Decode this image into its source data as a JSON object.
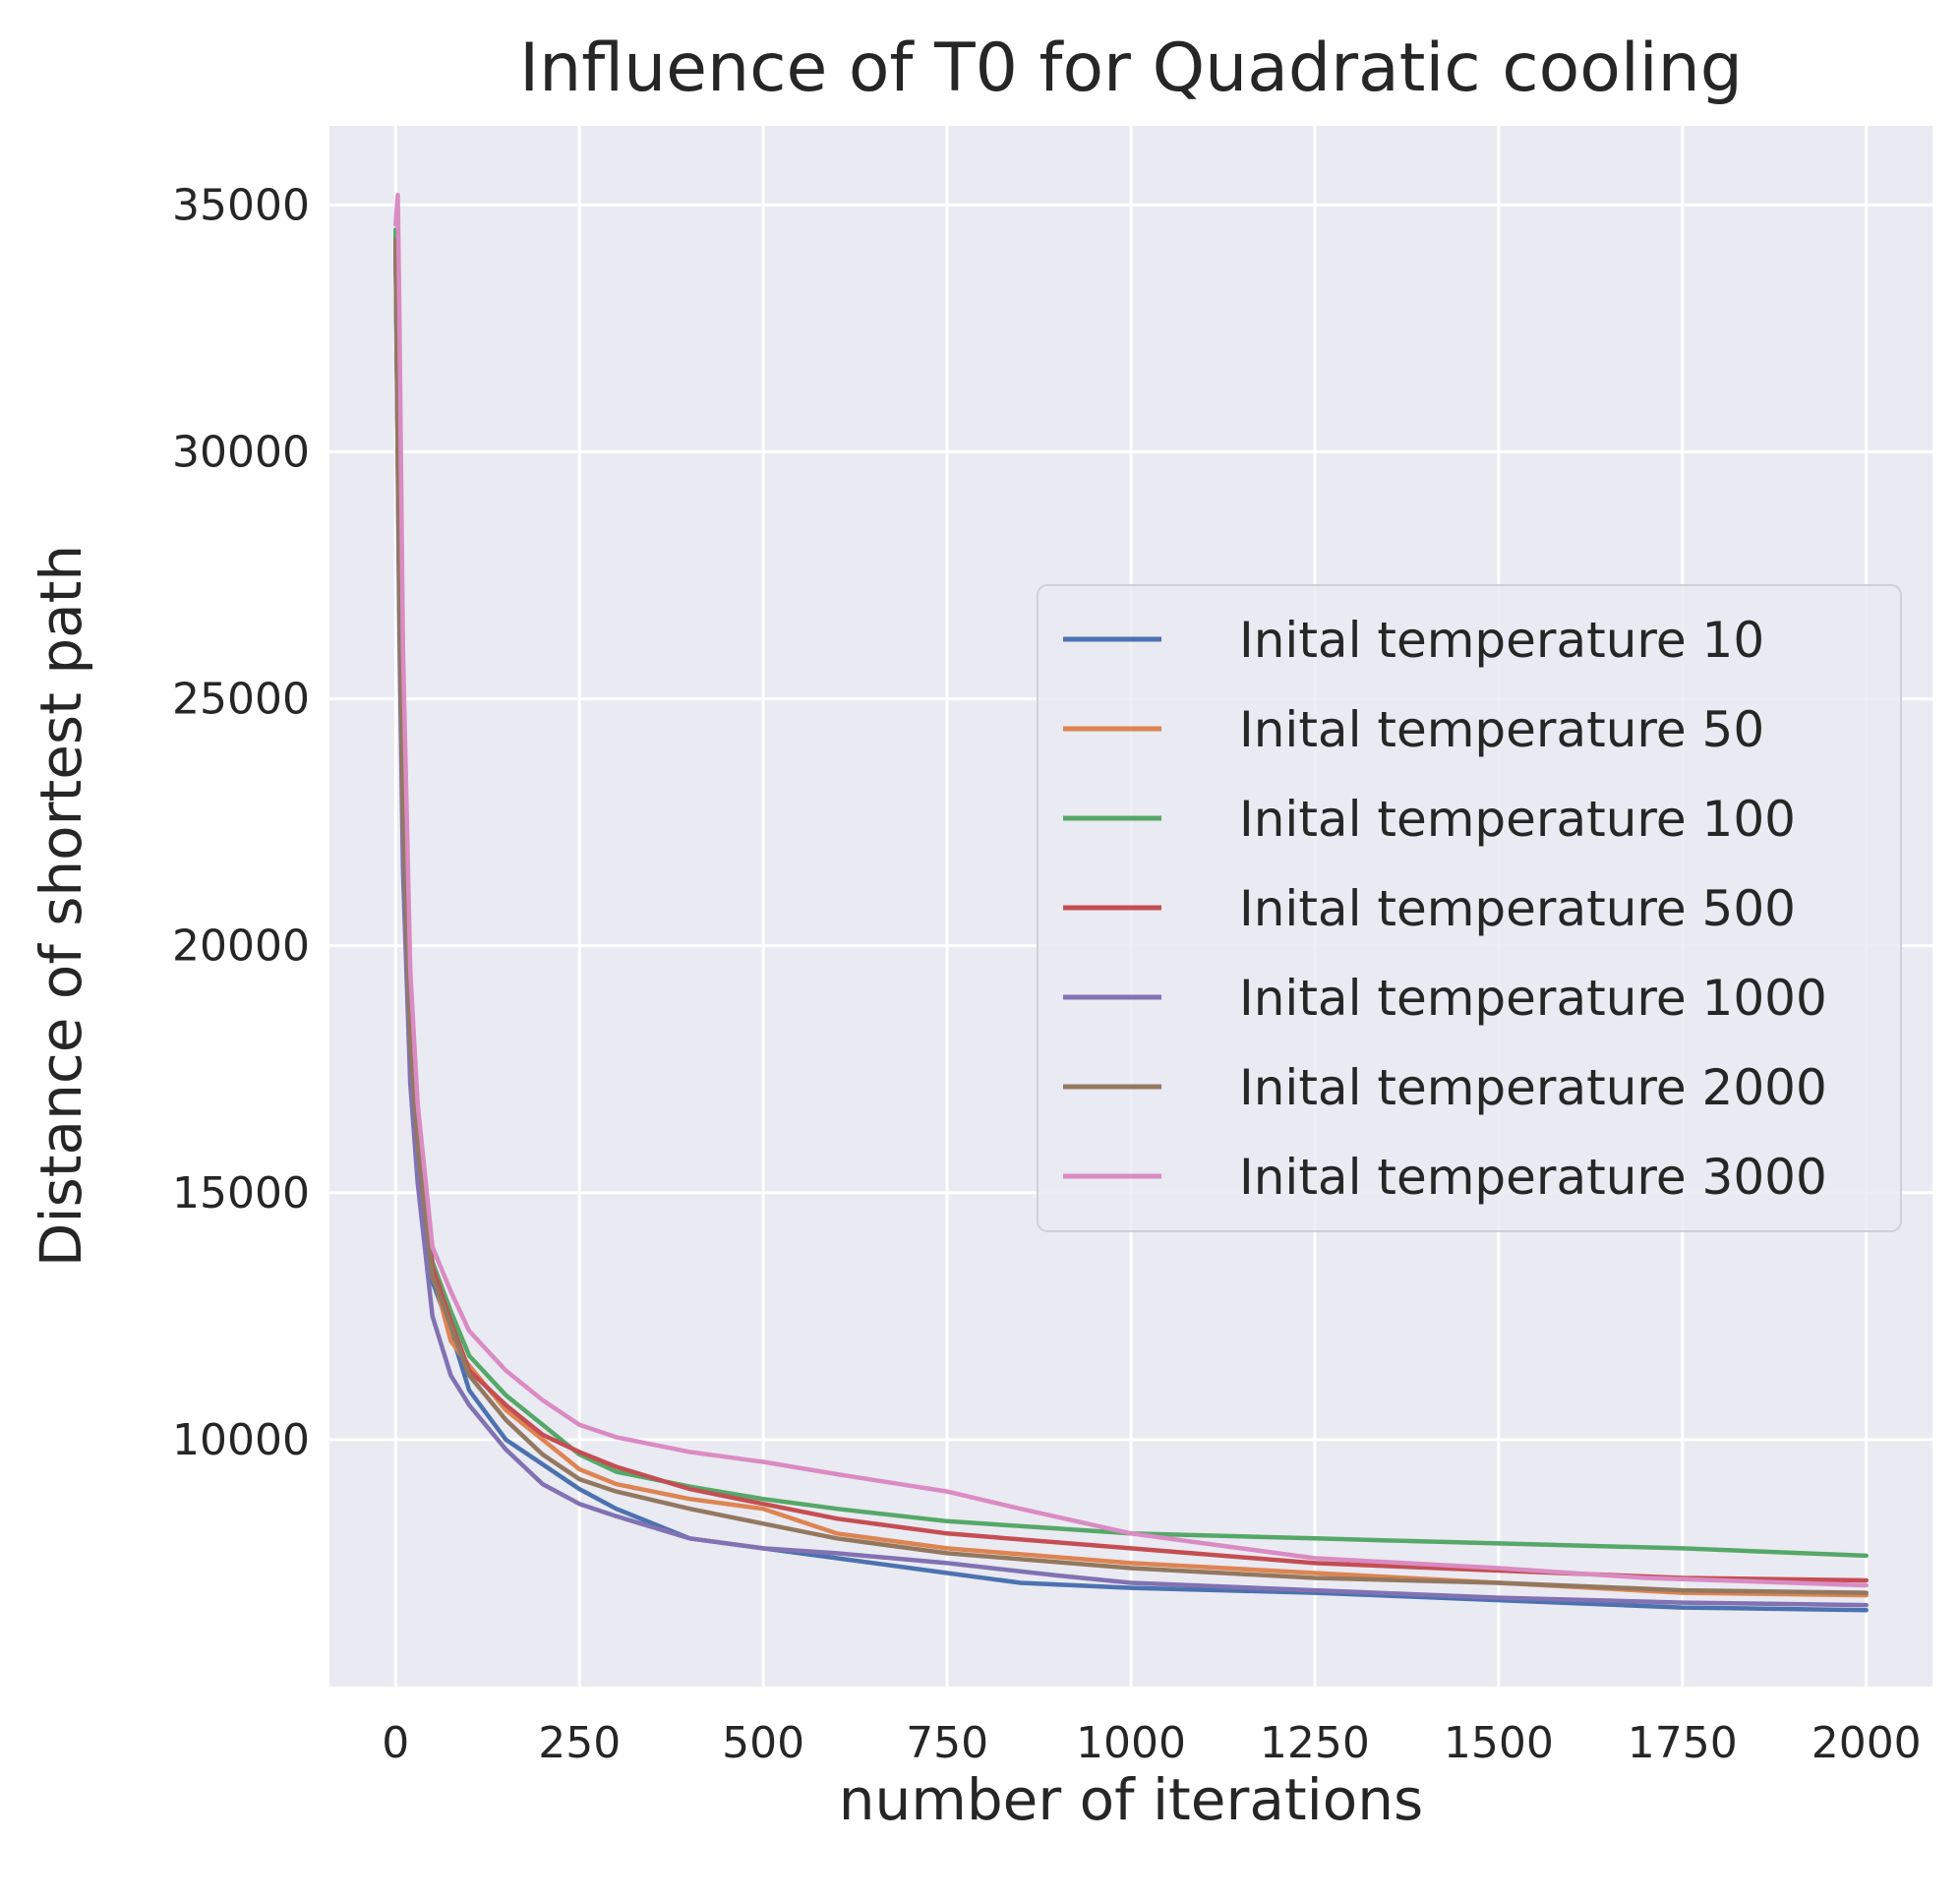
{
  "chart_data": {
    "type": "line",
    "title": "Influence of T0 for Quadratic cooling",
    "xlabel": "number of iterations",
    "ylabel": "Distance of shortest path",
    "xlim": [
      -90,
      2090
    ],
    "ylim": [
      5000,
      36600
    ],
    "xticks": [
      0,
      250,
      500,
      750,
      1000,
      1250,
      1500,
      1750,
      2000
    ],
    "yticks": [
      10000,
      15000,
      20000,
      25000,
      30000,
      35000
    ],
    "grid": true,
    "legend": "center-right",
    "series": [
      {
        "name": "Inital temperature 10",
        "color": "#4c72b0",
        "points": [
          [
            0,
            34400
          ],
          [
            5,
            27000
          ],
          [
            10,
            22000
          ],
          [
            20,
            17500
          ],
          [
            30,
            15500
          ],
          [
            50,
            13200
          ],
          [
            75,
            12200
          ],
          [
            100,
            11000
          ],
          [
            150,
            10000
          ],
          [
            200,
            9500
          ],
          [
            250,
            9000
          ],
          [
            300,
            8600
          ],
          [
            400,
            8000
          ],
          [
            500,
            7800
          ],
          [
            600,
            7600
          ],
          [
            750,
            7300
          ],
          [
            850,
            7100
          ],
          [
            1000,
            7000
          ],
          [
            1250,
            6900
          ],
          [
            1500,
            6750
          ],
          [
            1750,
            6600
          ],
          [
            2000,
            6550
          ]
        ]
      },
      {
        "name": "Inital temperature 50",
        "color": "#dd8452",
        "points": [
          [
            0,
            34300
          ],
          [
            5,
            27000
          ],
          [
            10,
            22500
          ],
          [
            20,
            18000
          ],
          [
            30,
            16000
          ],
          [
            50,
            13400
          ],
          [
            75,
            12000
          ],
          [
            100,
            11500
          ],
          [
            150,
            10600
          ],
          [
            200,
            10000
          ],
          [
            250,
            9400
          ],
          [
            300,
            9100
          ],
          [
            400,
            8800
          ],
          [
            500,
            8600
          ],
          [
            600,
            8100
          ],
          [
            750,
            7800
          ],
          [
            1000,
            7500
          ],
          [
            1250,
            7300
          ],
          [
            1500,
            7100
          ],
          [
            1750,
            6900
          ],
          [
            2000,
            6850
          ]
        ]
      },
      {
        "name": "Inital temperature 100",
        "color": "#55a868",
        "points": [
          [
            0,
            34500
          ],
          [
            5,
            27500
          ],
          [
            10,
            23000
          ],
          [
            20,
            18500
          ],
          [
            30,
            16500
          ],
          [
            50,
            13600
          ],
          [
            75,
            12600
          ],
          [
            100,
            11700
          ],
          [
            150,
            10900
          ],
          [
            200,
            10300
          ],
          [
            250,
            9700
          ],
          [
            300,
            9350
          ],
          [
            400,
            9050
          ],
          [
            500,
            8800
          ],
          [
            600,
            8600
          ],
          [
            750,
            8350
          ],
          [
            900,
            8200
          ],
          [
            1000,
            8100
          ],
          [
            1250,
            8000
          ],
          [
            1500,
            7900
          ],
          [
            1750,
            7800
          ],
          [
            2000,
            7650
          ]
        ]
      },
      {
        "name": "Inital temperature 500",
        "color": "#c44e52",
        "points": [
          [
            0,
            34200
          ],
          [
            5,
            27200
          ],
          [
            10,
            22800
          ],
          [
            20,
            18300
          ],
          [
            30,
            16200
          ],
          [
            50,
            13500
          ],
          [
            75,
            12400
          ],
          [
            100,
            11400
          ],
          [
            150,
            10700
          ],
          [
            200,
            10100
          ],
          [
            250,
            9750
          ],
          [
            300,
            9450
          ],
          [
            400,
            9000
          ],
          [
            500,
            8700
          ],
          [
            600,
            8400
          ],
          [
            750,
            8100
          ],
          [
            1000,
            7800
          ],
          [
            1250,
            7500
          ],
          [
            1500,
            7350
          ],
          [
            1750,
            7200
          ],
          [
            2000,
            7150
          ]
        ]
      },
      {
        "name": "Inital temperature 1000",
        "color": "#8172b3",
        "points": [
          [
            0,
            34100
          ],
          [
            5,
            26500
          ],
          [
            10,
            21500
          ],
          [
            20,
            17200
          ],
          [
            30,
            15200
          ],
          [
            50,
            12500
          ],
          [
            75,
            11300
          ],
          [
            100,
            10700
          ],
          [
            150,
            9800
          ],
          [
            200,
            9100
          ],
          [
            250,
            8700
          ],
          [
            300,
            8450
          ],
          [
            400,
            8000
          ],
          [
            500,
            7800
          ],
          [
            600,
            7700
          ],
          [
            750,
            7500
          ],
          [
            900,
            7250
          ],
          [
            1000,
            7100
          ],
          [
            1250,
            6950
          ],
          [
            1500,
            6800
          ],
          [
            1750,
            6700
          ],
          [
            2000,
            6650
          ]
        ]
      },
      {
        "name": "Inital temperature 2000",
        "color": "#937860",
        "points": [
          [
            0,
            34300
          ],
          [
            5,
            27300
          ],
          [
            10,
            22700
          ],
          [
            20,
            18100
          ],
          [
            30,
            16000
          ],
          [
            50,
            13300
          ],
          [
            75,
            12300
          ],
          [
            100,
            11300
          ],
          [
            150,
            10400
          ],
          [
            200,
            9700
          ],
          [
            250,
            9200
          ],
          [
            300,
            8950
          ],
          [
            400,
            8600
          ],
          [
            500,
            8300
          ],
          [
            600,
            8000
          ],
          [
            750,
            7700
          ],
          [
            1000,
            7400
          ],
          [
            1250,
            7200
          ],
          [
            1500,
            7100
          ],
          [
            1750,
            6950
          ],
          [
            2000,
            6900
          ]
        ]
      },
      {
        "name": "Inital temperature 3000",
        "color": "#da8bc3",
        "points": [
          [
            0,
            34600
          ],
          [
            3,
            35200
          ],
          [
            5,
            33000
          ],
          [
            10,
            26000
          ],
          [
            20,
            19500
          ],
          [
            30,
            16800
          ],
          [
            50,
            13900
          ],
          [
            75,
            13000
          ],
          [
            100,
            12200
          ],
          [
            150,
            11400
          ],
          [
            200,
            10800
          ],
          [
            250,
            10300
          ],
          [
            300,
            10050
          ],
          [
            400,
            9750
          ],
          [
            500,
            9550
          ],
          [
            600,
            9300
          ],
          [
            750,
            8950
          ],
          [
            850,
            8600
          ],
          [
            1000,
            8100
          ],
          [
            1100,
            7900
          ],
          [
            1250,
            7600
          ],
          [
            1500,
            7400
          ],
          [
            1700,
            7200
          ],
          [
            2000,
            7050
          ]
        ]
      }
    ]
  }
}
